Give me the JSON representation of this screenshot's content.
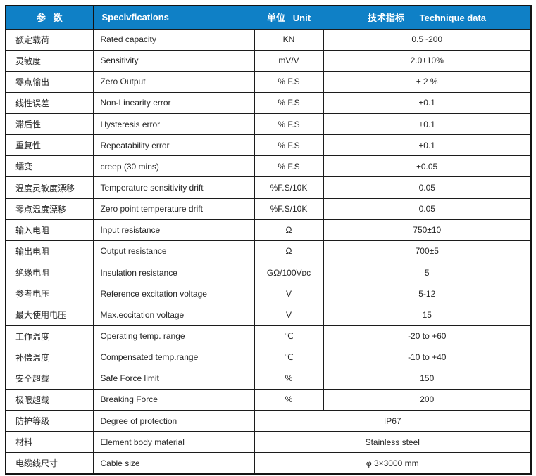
{
  "meta": {
    "description": "Load cell technical specifications table",
    "colors": {
      "header_bg": "#0F80C6",
      "header_text": "#FFFFFF",
      "border": "#1C1C1C",
      "body_text": "#262626",
      "background": "#FFFFFF"
    }
  },
  "table": {
    "header": {
      "param": "参   数",
      "spec": "Specivfications",
      "unit": "单位   Unit",
      "data": "技术指标      Technique data"
    },
    "rows": [
      {
        "param": "额定载荷",
        "spec": "Rated capacity",
        "unit": "KN",
        "value": "0.5~200",
        "merged": false
      },
      {
        "param": "灵敏度",
        "spec": "Sensitivity",
        "unit": "mV/V",
        "value": "2.0±10%",
        "merged": false
      },
      {
        "param": "零点输出",
        "spec": "Zero Output",
        "unit": "% F.S",
        "value": "± 2 %",
        "merged": false
      },
      {
        "param": "线性误差",
        "spec": "Non-Linearity error",
        "unit": "% F.S",
        "value": "±0.1",
        "merged": false
      },
      {
        "param": "滞后性",
        "spec": "Hysteresis error",
        "unit": "% F.S",
        "value": "±0.1",
        "merged": false
      },
      {
        "param": "重复性",
        "spec": "Repeatability error",
        "unit": "% F.S",
        "value": "±0.1",
        "merged": false
      },
      {
        "param": "蠕变",
        "spec": "creep (30 mins)",
        "unit": "% F.S",
        "value": "±0.05",
        "merged": false
      },
      {
        "param": "温度灵敏度漂移",
        "spec": "Temperature sensitivity drift",
        "unit": "%F.S/10K",
        "value": "0.05",
        "merged": false
      },
      {
        "param": "零点温度漂移",
        "spec": "Zero point temperature drift",
        "unit": "%F.S/10K",
        "value": "0.05",
        "merged": false
      },
      {
        "param": "输入电阻",
        "spec": "Input resistance",
        "unit": "Ω",
        "value": "750±10",
        "merged": false
      },
      {
        "param": "输出电阻",
        "spec": "Output resistance",
        "unit": "Ω",
        "value": "700±5",
        "merged": false
      },
      {
        "param": "绝缘电阻",
        "spec": "Insulation resistance",
        "unit": "GΩ/100Vᴅᴄ",
        "value": "5",
        "merged": false
      },
      {
        "param": "参考电压",
        "spec": "Reference excitation voltage",
        "unit": "V",
        "value": "5-12",
        "merged": false
      },
      {
        "param": "最大使用电压",
        "spec": "Max.eccitation voltage",
        "unit": "V",
        "value": "15",
        "merged": false
      },
      {
        "param": "工作温度",
        "spec": "Operating temp. range",
        "unit": "℃",
        "value": "-20 to +60",
        "merged": false
      },
      {
        "param": "补偿温度",
        "spec": "Compensated temp.range",
        "unit": "℃",
        "value": "-10 to +40",
        "merged": false
      },
      {
        "param": "安全超载",
        "spec": "Safe Force limit",
        "unit": "%",
        "value": "150",
        "merged": false
      },
      {
        "param": "极限超载",
        "spec": "Breaking Force",
        "unit": "%",
        "value": "200",
        "merged": false
      },
      {
        "param": "防护等级",
        "spec": "Degree of protection",
        "unit": null,
        "value": "IP67",
        "merged": true
      },
      {
        "param": "材料",
        "spec": "Element body material",
        "unit": null,
        "value": "Stainless steel",
        "merged": true
      },
      {
        "param": "电缆线尺寸",
        "spec": "Cable size",
        "unit": null,
        "value": "φ 3×3000 mm",
        "merged": true
      }
    ]
  }
}
